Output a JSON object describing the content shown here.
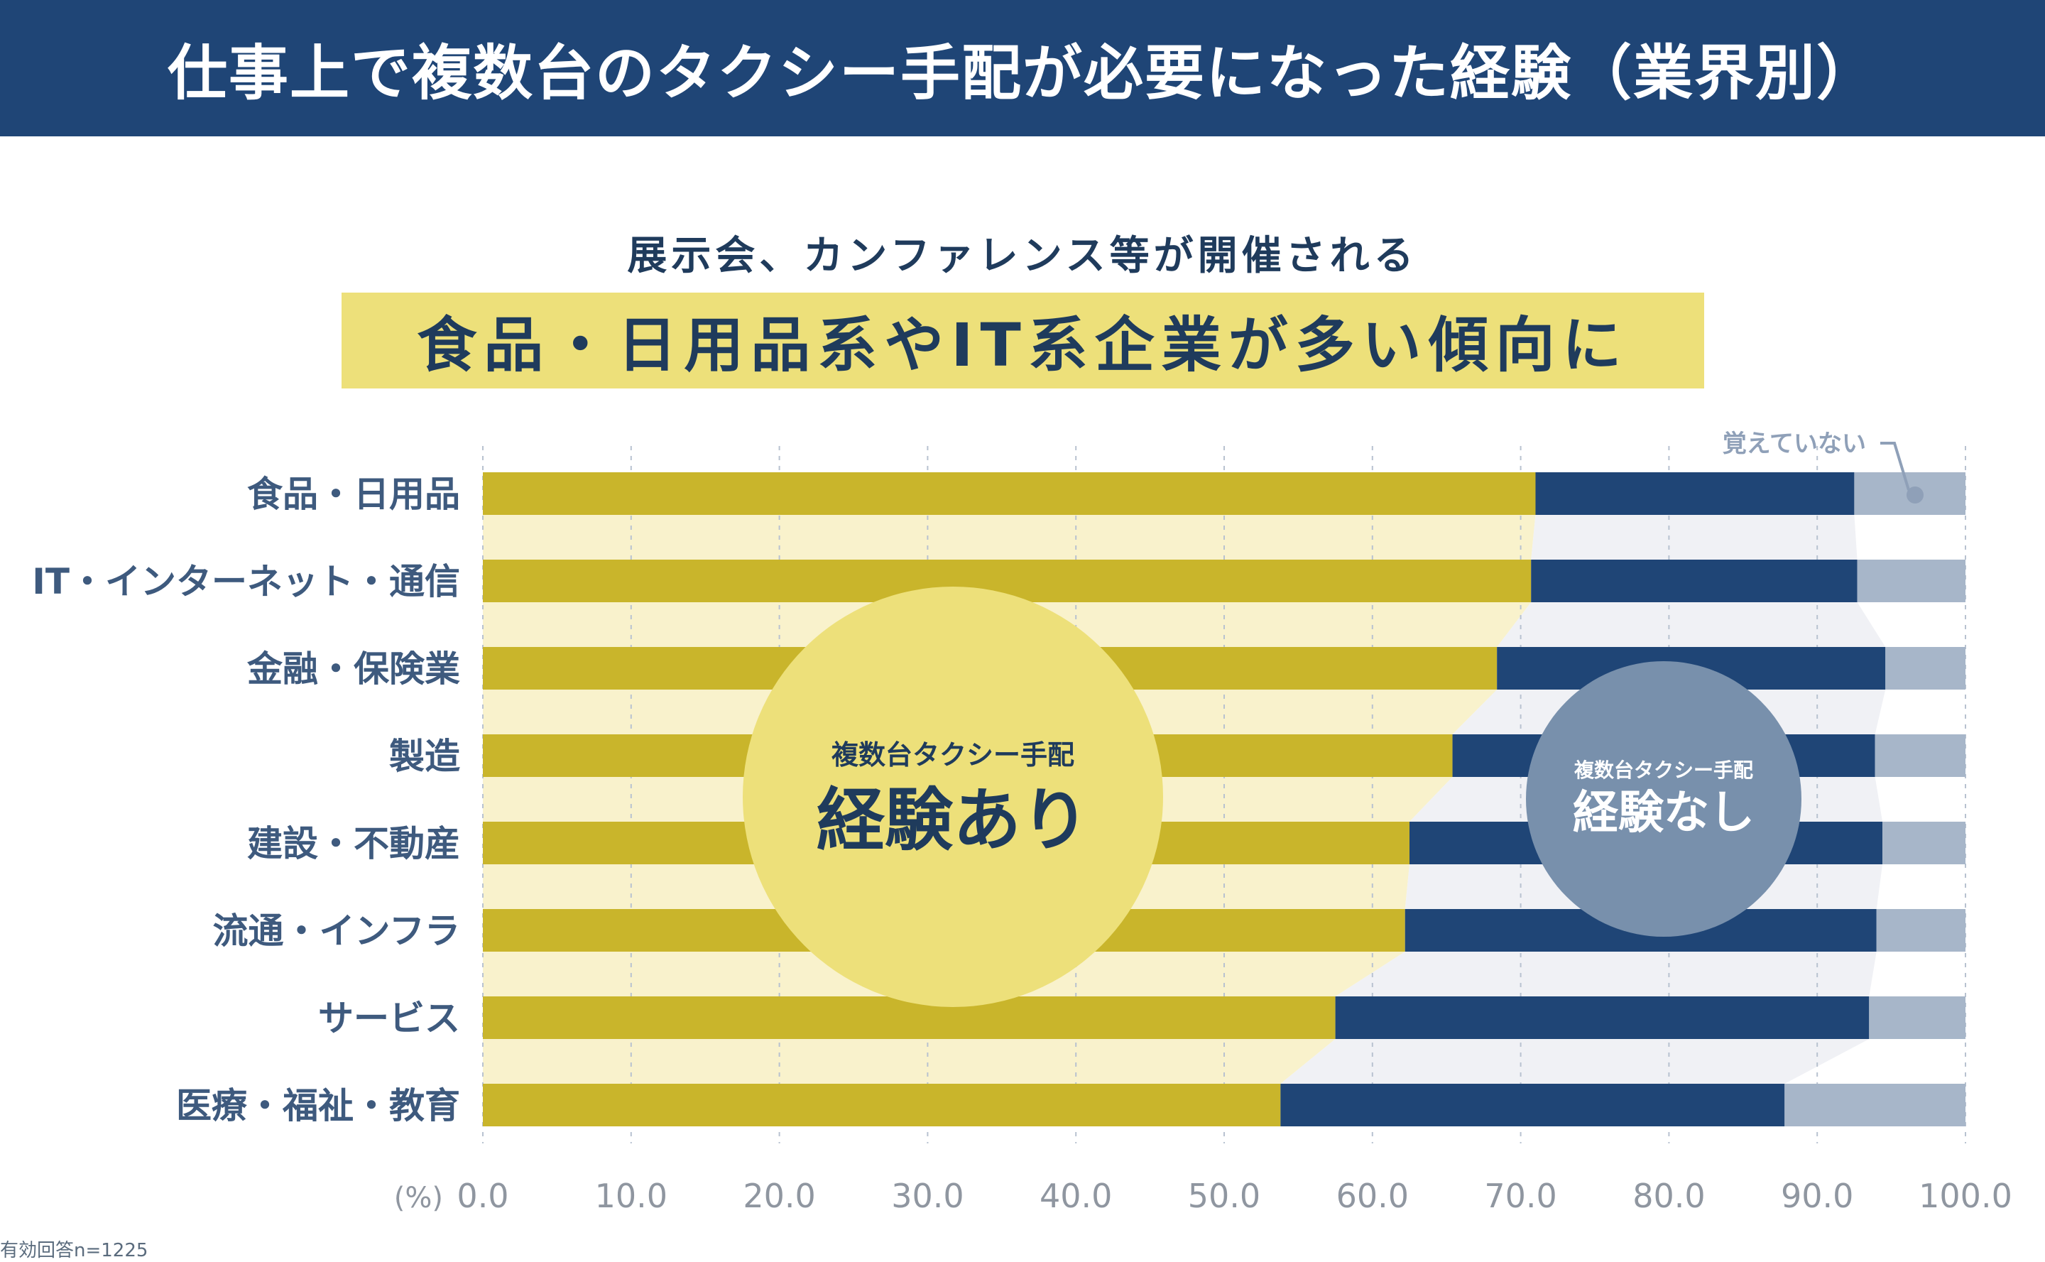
{
  "header": {
    "title": "仕事上で複数台のタクシー手配が必要になった経験（業界別）"
  },
  "headline": {
    "sub": "展示会、カンファレンス等が開催される",
    "main": "食品・日用品系やIT系企業が多い傾向に"
  },
  "chart_data": {
    "type": "bar",
    "orientation": "horizontal",
    "stacked": true,
    "categories": [
      "食品・日用品",
      "IT・インターネット・通信",
      "金融・保険業",
      "製造",
      "建設・不動産",
      "流通・インフラ",
      "サービス",
      "医療・福祉・教育"
    ],
    "series": [
      {
        "name": "複数台タクシー手配経験あり",
        "values": [
          71.0,
          70.7,
          68.4,
          65.4,
          62.5,
          62.2,
          57.5,
          53.8
        ]
      },
      {
        "name": "複数台タクシー手配経験なし",
        "values": [
          21.5,
          22.0,
          26.2,
          28.5,
          31.9,
          31.8,
          36.0,
          34.0
        ]
      },
      {
        "name": "覚えていない",
        "values": [
          7.5,
          7.3,
          5.4,
          6.1,
          5.6,
          6.0,
          6.5,
          12.2
        ]
      }
    ],
    "unit_label": "(%)",
    "xlim": [
      0,
      100
    ],
    "xticks": [
      "0.0",
      "10.0",
      "20.0",
      "30.0",
      "40.0",
      "50.0",
      "60.0",
      "70.0",
      "80.0",
      "90.0",
      "100.0"
    ],
    "grid": true,
    "colors": {
      "yes": "#c9b52b",
      "no": "#1f4576",
      "unknown": "#a7b6c9",
      "yes_band": "#f9f2cc",
      "no_band": "#f0f1f5"
    },
    "annotations": {
      "unknown_label": "覚えていない",
      "yes_bubble_top": "複数台タクシー手配",
      "yes_bubble_main": "経験あり",
      "no_bubble_top": "複数台タクシー手配",
      "no_bubble_main": "経験なし"
    }
  },
  "footnote": "有効回答n=1225"
}
